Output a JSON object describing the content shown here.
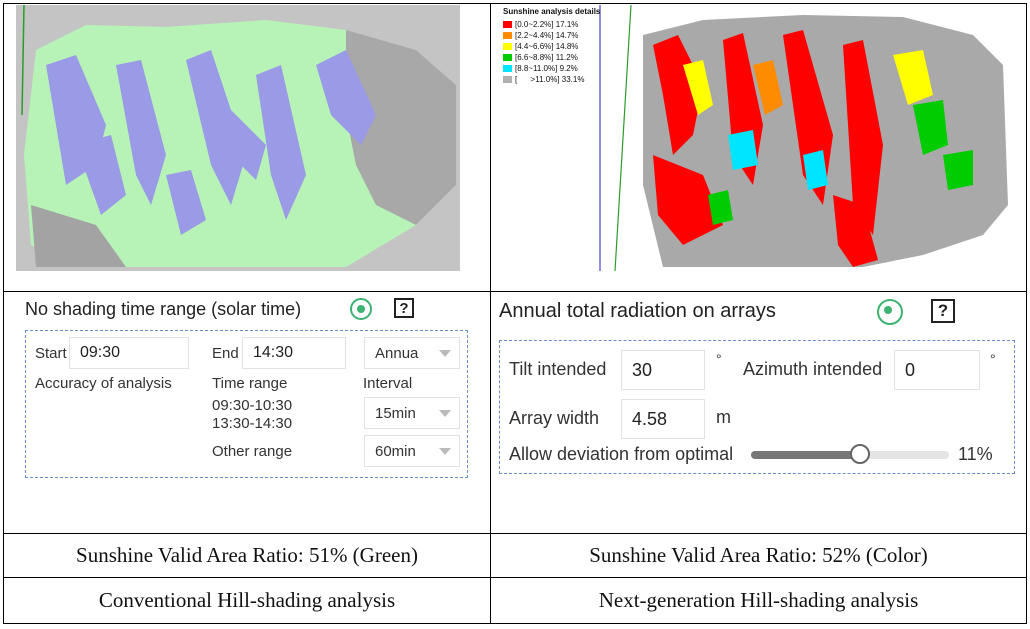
{
  "left": {
    "panel": {
      "title": "No shading time range (solar time)",
      "help_label": "?",
      "start_label": "Start",
      "start_value": "09:30",
      "end_label": "End",
      "end_value": "14:30",
      "period_select": "Annua",
      "accuracy_label": "Accuracy of analysis",
      "time_range_label": "Time range",
      "time_range_1": "09:30-10:30",
      "time_range_2": "13:30-14:30",
      "interval_label": "Interval",
      "interval_select": "15min",
      "other_range_label": "Other range",
      "other_range_select": "60min"
    },
    "ratio_caption": "Sunshine Valid Area Ratio: 51% (Green)",
    "method_caption": "Conventional Hill-shading analysis"
  },
  "right": {
    "legend": {
      "title": "Sunshine analysis details",
      "items": [
        {
          "range": "[0.0~2.2%]",
          "pct": "17.1%",
          "color": "#ff0000"
        },
        {
          "range": "[2.2~4.4%]",
          "pct": "14.7%",
          "color": "#ff8c00"
        },
        {
          "range": "[4.4~6.6%]",
          "pct": "14.8%",
          "color": "#ffff00"
        },
        {
          "range": "[6.6~8.8%]",
          "pct": "11.2%",
          "color": "#00cc00"
        },
        {
          "range": "[8.8~11.0%]",
          "pct": "9.2%",
          "color": "#00e5ff"
        },
        {
          "range": "[      >11.0%]",
          "pct": "33.1%",
          "color": "#b0b0b0"
        }
      ]
    },
    "panel": {
      "title": "Annual total radiation on arrays",
      "help_label": "?",
      "tilt_label": "Tilt intended",
      "tilt_value": "30",
      "tilt_unit": "°",
      "azimuth_label": "Azimuth intended",
      "azimuth_value": "0",
      "azimuth_unit": "°",
      "width_label": "Array width",
      "width_value": "4.58",
      "width_unit": "m",
      "deviation_label": "Allow deviation from optimal",
      "deviation_value": "11%",
      "deviation_fraction": 0.55
    },
    "ratio_caption": "Sunshine Valid Area Ratio: 52% (Color)",
    "method_caption": "Next-generation Hill-shading analysis"
  },
  "colors": {
    "accent_green": "#3cb371",
    "shade_purple": "#9a9ae6",
    "valid_green": "#b6f5b6",
    "terrain_gray": "#a9a9a9"
  }
}
